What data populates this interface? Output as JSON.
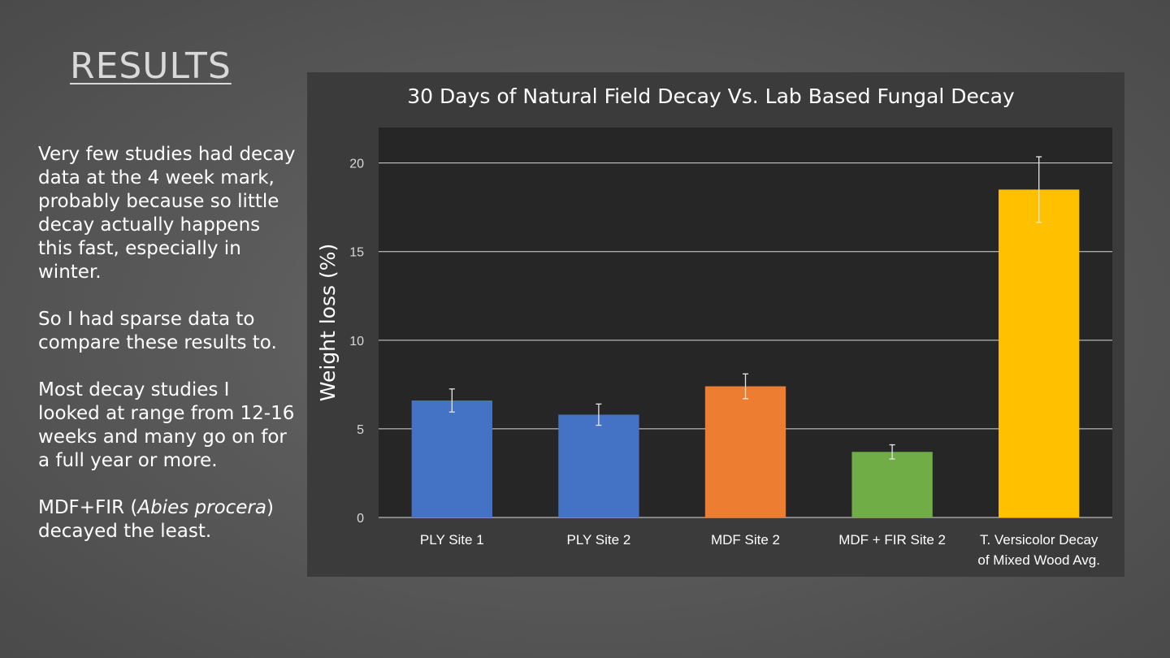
{
  "slide": {
    "title": "RESULTS",
    "paragraphs": [
      {
        "parts": [
          {
            "text": "Very few studies had decay data at the 4 week mark, probably because so little decay actually happens this fast, especially in winter."
          }
        ]
      },
      {
        "parts": [
          {
            "text": "So I had sparse data to compare these results to."
          }
        ]
      },
      {
        "parts": [
          {
            "text": "Most decay studies I looked at range from 12-16 weeks and many go on for a full year or more."
          }
        ]
      },
      {
        "parts": [
          {
            "text": " MDF+FIR ("
          },
          {
            "text": "Abies procera",
            "italic": true
          },
          {
            "text": ") decayed the least."
          }
        ]
      }
    ]
  },
  "chart_data": {
    "type": "bar",
    "title": "30 Days of Natural Field Decay Vs. Lab Based Fungal Decay",
    "xlabel": "",
    "ylabel": "Weight loss (%)",
    "ylim": [
      0,
      22
    ],
    "yticks": [
      0,
      5,
      10,
      15,
      20
    ],
    "grid": true,
    "legend": "none",
    "categories": [
      "PLY Site 1",
      "PLY Site 2",
      "MDF Site 2",
      "MDF + FIR Site 2",
      "T. Versicolor Decay of Mixed Wood Avg."
    ],
    "category_lines": [
      [
        "PLY Site 1"
      ],
      [
        "PLY Site 2"
      ],
      [
        "MDF Site 2"
      ],
      [
        "MDF + FIR Site 2"
      ],
      [
        "T. Versicolor Decay",
        "of Mixed Wood Avg."
      ]
    ],
    "values": [
      6.6,
      5.8,
      7.4,
      3.7,
      18.5
    ],
    "error_bars": [
      0.65,
      0.6,
      0.7,
      0.4,
      1.85
    ],
    "colors": [
      "#4472c4",
      "#4472c4",
      "#ed7d31",
      "#70ad47",
      "#ffc000"
    ]
  }
}
